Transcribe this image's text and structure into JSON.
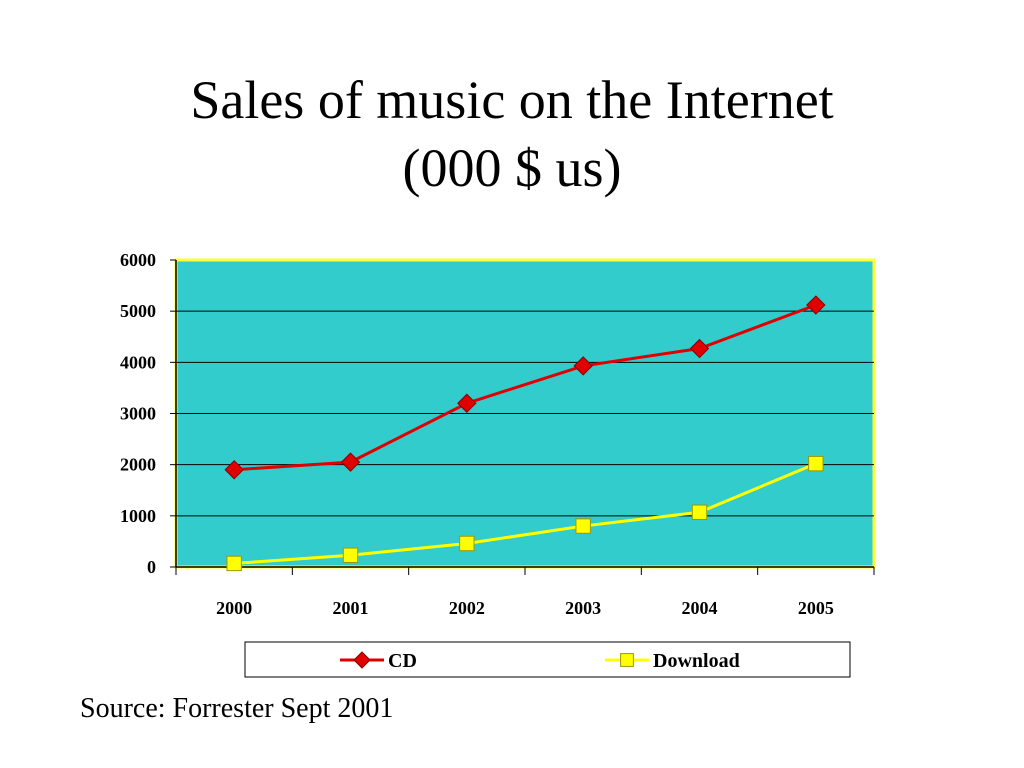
{
  "title_line1": "Sales of music on the Internet",
  "title_line2": "(000 $ us)",
  "source": "Source: Forrester Sept 2001",
  "colors": {
    "plot_background": "#33CCCC",
    "plot_border": "#FFFF33",
    "cd": "#E00000",
    "download": "#FFFF00"
  },
  "chart_data": {
    "type": "line",
    "categories": [
      "2000",
      "2001",
      "2002",
      "2003",
      "2004",
      "2005"
    ],
    "series": [
      {
        "name": "CD",
        "values": [
          1900,
          2050,
          3200,
          3930,
          4270,
          5120
        ],
        "marker": "diamond"
      },
      {
        "name": "Download",
        "values": [
          70,
          230,
          460,
          800,
          1070,
          2020
        ],
        "marker": "square"
      }
    ],
    "yticks": [
      "0",
      "1000",
      "2000",
      "3000",
      "4000",
      "5000",
      "6000"
    ],
    "ylim": [
      0,
      6000
    ],
    "grid": true,
    "legend_position": "bottom"
  }
}
